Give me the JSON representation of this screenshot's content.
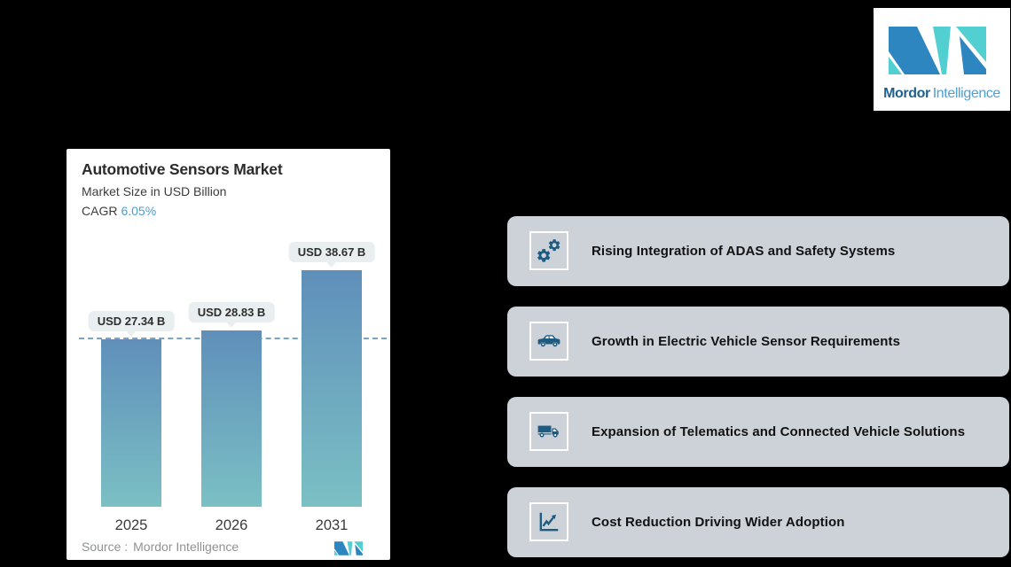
{
  "brand": {
    "name_bold": "Mordor",
    "name_light": "Intelligence"
  },
  "chart": {
    "cagr_label": "CAGR",
    "source_prefix": "Source :",
    "source_name": "Mordor Intelligence"
  },
  "chart_data": {
    "type": "bar",
    "title": "Automotive Sensors Market",
    "subtitle": "Market Size in USD Billion",
    "cagr": "6.05%",
    "categories": [
      "2025",
      "2026",
      "2031"
    ],
    "values": [
      27.34,
      28.83,
      38.67
    ],
    "value_labels": [
      "USD 27.34 B",
      "USD 28.83 B",
      "USD 38.67 B"
    ],
    "unit": "USD Billion",
    "ylim": [
      0,
      38.67
    ],
    "reference_line": 27.34,
    "grid": false,
    "legend": false,
    "source": "Mordor Intelligence"
  },
  "drivers": [
    {
      "icon": "gears-icon",
      "label": "Rising Integration of ADAS and Safety Systems"
    },
    {
      "icon": "car-icon",
      "label": "Growth in Electric Vehicle Sensor Requirements"
    },
    {
      "icon": "truck-icon",
      "label": "Expansion of Telematics and Connected Vehicle Solutions"
    },
    {
      "icon": "growth-chart-icon",
      "label": "Cost Reduction Driving Wider Adoption"
    }
  ],
  "colors": {
    "background": "#000000",
    "accent_blue": "#4f9bce",
    "bar_gradient_top": "#5f8fba",
    "bar_gradient_bottom": "#7bc0c4",
    "dashed_line": "#77a3cc",
    "badge_bg": "#e9eef0",
    "driver_card_bg": "#cdd2d9",
    "icon_blue": "#1d5b80",
    "logo_teal": "#52cfd0",
    "logo_blue": "#2e86c1"
  }
}
